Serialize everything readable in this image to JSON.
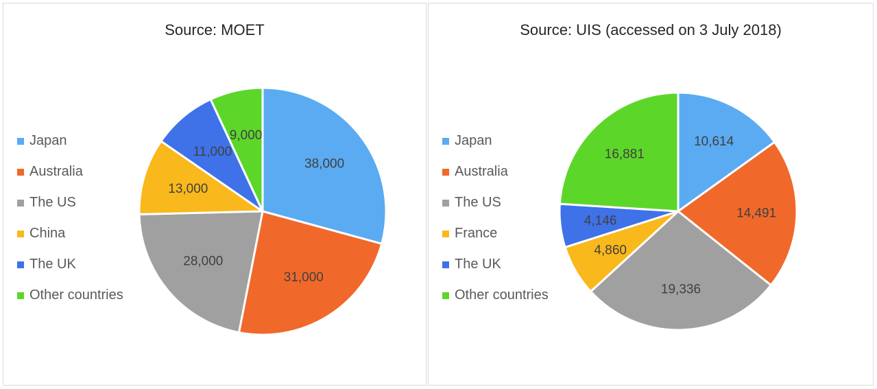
{
  "chart_data": [
    {
      "type": "pie",
      "title": "Source: MOET",
      "categories": [
        "Japan",
        "Australia",
        "The US",
        "China",
        "The UK",
        "Other countries"
      ],
      "values": [
        38000,
        31000,
        28000,
        13000,
        11000,
        9000
      ],
      "labels": [
        "38,000",
        "31,000",
        "28,000",
        "13,000",
        "11,000",
        "9,000"
      ],
      "colors": [
        "#5aabf2",
        "#f0692b",
        "#a0a0a0",
        "#f9b81b",
        "#3f72e8",
        "#5dd62a"
      ],
      "legend": "left"
    },
    {
      "type": "pie",
      "title": "Source: UIS (accessed on 3 July 2018)",
      "categories": [
        "Japan",
        "Australia",
        "The US",
        "France",
        "The UK",
        "Other countries"
      ],
      "values": [
        10614,
        14491,
        19336,
        4860,
        4146,
        16881
      ],
      "labels": [
        "10,614",
        "14,491",
        "19,336",
        "4,860",
        "4,146",
        "16,881"
      ],
      "colors": [
        "#5aabf2",
        "#f0692b",
        "#a0a0a0",
        "#f9b81b",
        "#3f72e8",
        "#5dd62a"
      ],
      "legend": "left"
    }
  ]
}
